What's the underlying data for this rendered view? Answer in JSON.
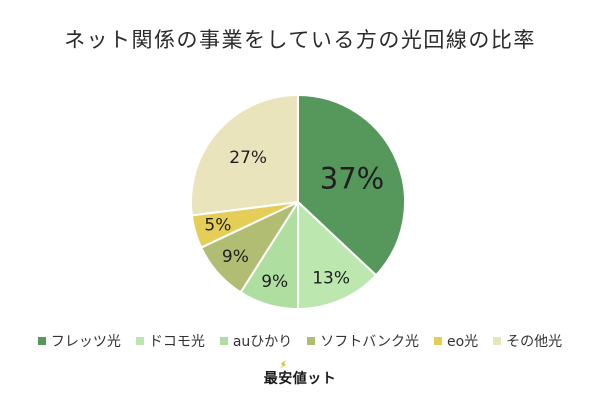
{
  "title": "ネット関係の事業をしている方の光回線の比率",
  "chart_data": {
    "type": "pie",
    "title": "ネット関係の事業をしている方の光回線の比率",
    "unit": "%",
    "direction": "clockwise",
    "start_angle_deg": 0,
    "legend_position": "bottom",
    "label_color": "#1f1f1f",
    "stroke_color": "#ffffff",
    "slices": [
      {
        "label": "フレッツ光",
        "value": 37,
        "display": "37%",
        "color": "#56975b",
        "label_r": 0.55,
        "label_size": 29
      },
      {
        "label": "ドコモ光",
        "value": 13,
        "display": "13%",
        "color": "#bce7af",
        "label_r": 0.78,
        "label_size": 17
      },
      {
        "label": "auひかり",
        "value": 9,
        "display": "9%",
        "color": "#aedfa0",
        "label_r": 0.78,
        "label_size": 17
      },
      {
        "label": "ソフトバンク光",
        "value": 9,
        "display": "9%",
        "color": "#b0bd72",
        "label_r": 0.78,
        "label_size": 17
      },
      {
        "label": "eo光",
        "value": 5,
        "display": "5%",
        "color": "#e5ce58",
        "label_r": 0.78,
        "label_size": 17
      },
      {
        "label": "その他光",
        "value": 27,
        "display": "27%",
        "color": "#e9e4bc",
        "label_r": 0.62,
        "label_size": 17
      }
    ]
  },
  "footer": {
    "logo_text": "最安値ット",
    "bolt_icon": "⚡",
    "bolt_color": "#f2c500"
  }
}
